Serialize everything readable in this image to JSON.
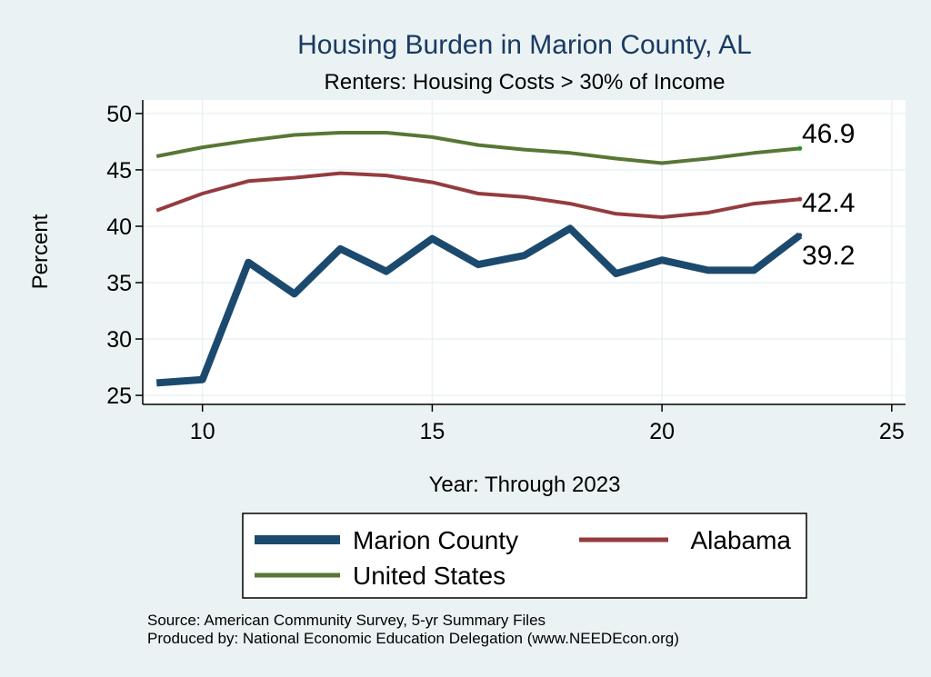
{
  "chart_data": {
    "type": "line",
    "title": "Housing Burden in Marion County, AL",
    "subtitle": "Renters: Housing Costs > 30% of Income",
    "xlabel": "Year: Through 2023",
    "ylabel": "Percent",
    "xlim": [
      8.7,
      25.3
    ],
    "ylim": [
      24.2,
      51.2
    ],
    "xticks": [
      10,
      15,
      20,
      25
    ],
    "yticks": [
      25,
      30,
      35,
      40,
      45,
      50
    ],
    "grid": true,
    "x": [
      9,
      10,
      11,
      12,
      13,
      14,
      15,
      16,
      17,
      18,
      19,
      20,
      21,
      22,
      23
    ],
    "series": [
      {
        "name": "Marion County",
        "color": "#1c4a6e",
        "values": [
          26.1,
          26.4,
          36.8,
          34.0,
          38.0,
          36.0,
          38.9,
          36.6,
          37.4,
          39.8,
          35.8,
          37.0,
          36.1,
          36.1,
          39.2
        ],
        "end_label": "39.2"
      },
      {
        "name": "Alabama",
        "color": "#953b3f",
        "values": [
          41.4,
          42.9,
          44.0,
          44.3,
          44.7,
          44.5,
          43.9,
          42.9,
          42.6,
          42.0,
          41.1,
          40.8,
          41.2,
          42.0,
          42.4
        ],
        "end_label": "42.4"
      },
      {
        "name": "United States",
        "color": "#577735",
        "values": [
          46.2,
          47.0,
          47.6,
          48.1,
          48.3,
          48.3,
          47.9,
          47.2,
          46.8,
          46.5,
          46.0,
          45.6,
          46.0,
          46.5,
          46.9
        ],
        "end_label": "46.9"
      }
    ],
    "legend": {
      "position": "bottom",
      "items": [
        "Marion County",
        "Alabama",
        "United States"
      ]
    },
    "source_lines": [
      "Source: American Community Survey, 5-yr Summary Files",
      "Produced by: National Economic Education Delegation (www.NEEDEcon.org)"
    ]
  }
}
